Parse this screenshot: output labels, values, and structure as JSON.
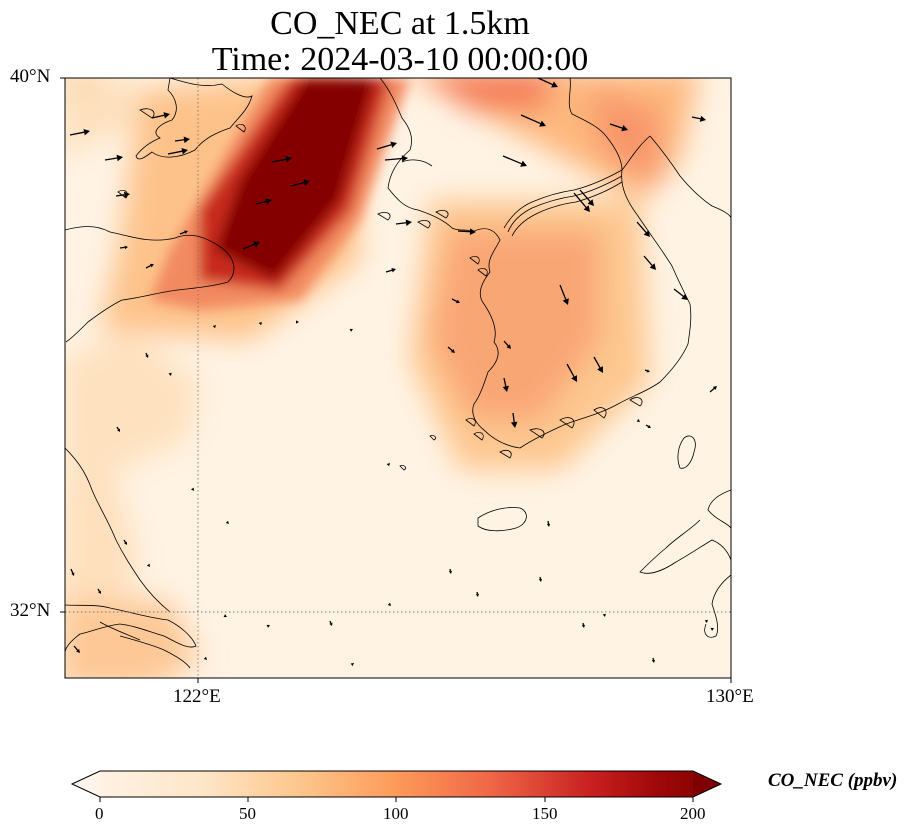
{
  "title": {
    "line1": "CO_NEC at 1.5km",
    "line2": "Time: 2024-03-10 00:00:00"
  },
  "map": {
    "lat_ticks": [
      "40°N",
      "32°N"
    ],
    "lon_ticks": [
      "122°E",
      "130°E"
    ],
    "lon_range": [
      120,
      130
    ],
    "lat_range": [
      31,
      40
    ]
  },
  "colorbar": {
    "label": "CO_NEC (ppbv)",
    "ticks": [
      "0",
      "50",
      "100",
      "150",
      "200"
    ],
    "range": [
      0,
      200
    ],
    "colors": [
      "#fff5eb",
      "#fdd8a9",
      "#fdab67",
      "#f46d43",
      "#d7301f",
      "#a50f15",
      "#7f0000"
    ]
  }
}
